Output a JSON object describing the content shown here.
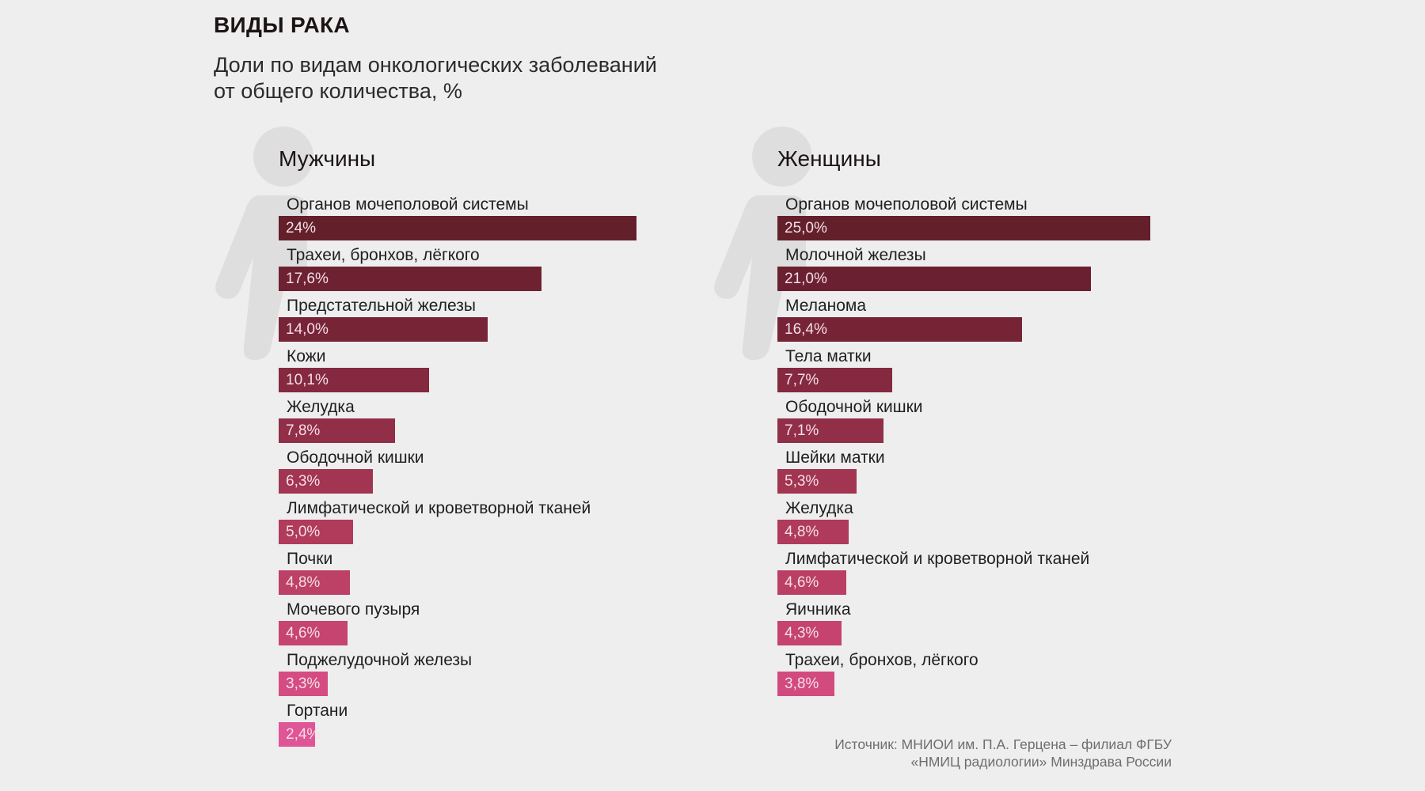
{
  "header": {
    "title": "ВИДЫ РАКА",
    "subtitle_line1": "Доли по видам онкологических заболеваний",
    "subtitle_line2": "от общего количества, %"
  },
  "source": {
    "line1": "Источник: МНИОИ им. П.А. Герцена – филиал ФГБУ",
    "line2": "«НМИЦ радиологии» Минздрава России"
  },
  "chart_data": [
    {
      "type": "bar",
      "orientation": "horizontal",
      "title": "Мужчины",
      "categories": [
        "Органов мочеполовой системы",
        "Трахеи, бронхов, лёгкого",
        "Предстательной железы",
        "Кожи",
        "Желудка",
        "Ободочной кишки",
        "Лимфатической и кроветворной тканей",
        "Почки",
        "Мочевого пузыря",
        "Поджелудочной железы",
        "Гортани"
      ],
      "values": [
        24,
        17.6,
        14.0,
        10.1,
        7.8,
        6.3,
        5.0,
        4.8,
        4.6,
        3.3,
        2.4
      ],
      "value_labels": [
        "24%",
        "17,6%",
        "14,0%",
        "10,1%",
        "7,8%",
        "6,3%",
        "5,0%",
        "4,8%",
        "4,6%",
        "3,3%",
        "2,4%"
      ],
      "colors": [
        "#63202a",
        "#6d2131",
        "#782437",
        "#84293f",
        "#922f48",
        "#a23551",
        "#b13b5b",
        "#bd4066",
        "#c64470",
        "#d54c82",
        "#df5595"
      ]
    },
    {
      "type": "bar",
      "orientation": "horizontal",
      "title": "Женщины",
      "categories": [
        "Органов мочеполовой системы",
        "Молочной железы",
        "Меланома",
        "Тела матки",
        "Ободочной кишки",
        "Шейки матки",
        "Желудка",
        "Лимфатической и кроветворной тканей",
        "Яичника",
        "Трахеи, бронхов, лёгкого"
      ],
      "values": [
        25.0,
        21.0,
        16.4,
        7.7,
        7.1,
        5.3,
        4.8,
        4.6,
        4.3,
        3.8
      ],
      "value_labels": [
        "25,0%",
        "21,0%",
        "16,4%",
        "7,7%",
        "7,1%",
        "5,3%",
        "4,8%",
        "4,6%",
        "4,3%",
        "3,8%"
      ],
      "colors": [
        "#63202a",
        "#6a2030",
        "#772336",
        "#84293f",
        "#922f48",
        "#a23551",
        "#b03a5b",
        "#bb3f64",
        "#c5436e",
        "#d24a7e"
      ]
    }
  ]
}
